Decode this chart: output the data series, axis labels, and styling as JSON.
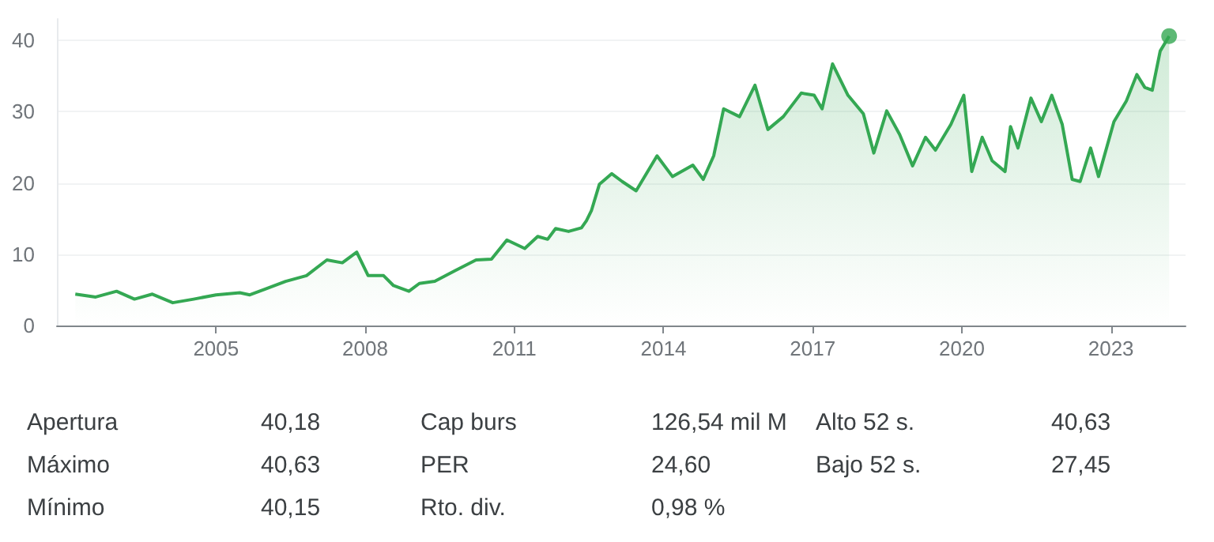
{
  "chart_data": [
    {
      "type": "area",
      "xlim": [
        2001.8,
        2024.5
      ],
      "ylim": [
        0,
        43
      ],
      "xticks": [
        2005,
        2008,
        2011,
        2014,
        2017,
        2020,
        2023
      ],
      "yticks": [
        0,
        10,
        20,
        30,
        40
      ],
      "grid": "y",
      "series": [
        {
          "color": "#34a853",
          "x": [
            2002.17,
            2002.58,
            2003.0,
            2003.36,
            2003.72,
            2004.13,
            2004.55,
            2005.0,
            2005.48,
            2005.68,
            2005.99,
            2006.4,
            2006.82,
            2007.23,
            2007.54,
            2007.83,
            2008.06,
            2008.37,
            2008.57,
            2008.88,
            2009.09,
            2009.4,
            2009.81,
            2010.23,
            2010.54,
            2010.85,
            2011.21,
            2011.47,
            2011.67,
            2011.83,
            2012.09,
            2012.35,
            2012.45,
            2012.55,
            2012.71,
            2012.96,
            2013.17,
            2013.45,
            2013.87,
            2014.18,
            2014.59,
            2014.8,
            2015.01,
            2015.21,
            2015.53,
            2015.84,
            2016.1,
            2016.41,
            2016.77,
            2017.03,
            2017.19,
            2017.4,
            2017.71,
            2018.02,
            2018.23,
            2018.49,
            2018.75,
            2019.01,
            2019.27,
            2019.47,
            2019.78,
            2020.04,
            2020.2,
            2020.41,
            2020.61,
            2020.87,
            2020.98,
            2021.13,
            2021.39,
            2021.6,
            2021.81,
            2022.02,
            2022.22,
            2022.38,
            2022.59,
            2022.75,
            2023.06,
            2023.31,
            2023.52,
            2023.68,
            2023.83,
            2023.99,
            2024.17
          ],
          "values": [
            4.4,
            4.0,
            4.8,
            3.7,
            4.4,
            3.2,
            3.7,
            4.3,
            4.6,
            4.3,
            5.1,
            6.2,
            7.0,
            9.2,
            8.8,
            10.3,
            7.0,
            7.0,
            5.6,
            4.8,
            5.9,
            6.2,
            7.7,
            9.2,
            9.3,
            12.0,
            10.8,
            12.5,
            12.1,
            13.6,
            13.2,
            13.7,
            14.7,
            16.1,
            19.8,
            21.3,
            20.2,
            18.9,
            23.8,
            20.9,
            22.5,
            20.5,
            23.8,
            30.4,
            29.3,
            33.7,
            27.5,
            29.3,
            32.6,
            32.3,
            30.4,
            36.7,
            32.3,
            29.7,
            24.2,
            30.1,
            26.8,
            22.4,
            26.4,
            24.6,
            28.2,
            32.3,
            21.6,
            26.4,
            23.1,
            21.6,
            27.9,
            24.9,
            31.9,
            28.6,
            32.3,
            28.2,
            20.5,
            20.2,
            24.9,
            20.9,
            28.6,
            31.5,
            35.2,
            33.4,
            33.0,
            38.5,
            40.6
          ]
        },
        {
          "type": "scatter",
          "marker": "circle",
          "color": "#34a853",
          "x": [
            2024.17
          ],
          "values": [
            40.6
          ]
        }
      ]
    },
    {
      "type": "other",
      "annotations": [
        "Apertura",
        "40,18",
        "Cap burs",
        "126,54 mil M",
        "Alto 52 s.",
        "40,63",
        "Máximo",
        "40,63",
        "PER",
        "24,60",
        "Bajo 52 s.",
        "27,45",
        "Mínimo",
        "40,15",
        "Rto. div.",
        "0,98 %"
      ]
    }
  ]
}
